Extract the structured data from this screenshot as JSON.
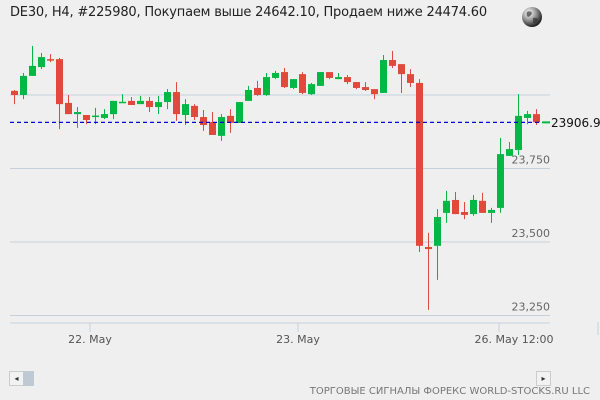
{
  "header": {
    "title": "DE30, H4, #225980, Покупаем выше 24642.10, Продаем ниже 24474.60",
    "globe_icon": "globe-icon"
  },
  "footer": {
    "text": "ТОРГОВЫЕ СИГНАЛЫ ФОРЕКС WORLD-STOCKS.RU LLC"
  },
  "scrollbar": {
    "left_icon": "arrow-left-icon",
    "right_icon": "arrow-right-icon"
  },
  "colors": {
    "up": "#00b843",
    "down": "#e0493b",
    "current_line": "#0000dd",
    "grid": "#c3d0dd"
  },
  "chart_data": {
    "type": "candlestick",
    "symbol": "DE30",
    "timeframe": "H4",
    "current_price": "23906.9",
    "ylim": [
      23220,
      24260
    ],
    "y_ticks": [
      {
        "value": 23250,
        "label": "23,250"
      },
      {
        "value": 23500,
        "label": "23,500"
      },
      {
        "value": 23750,
        "label": "23,750"
      },
      {
        "value": 24000,
        "label": ""
      }
    ],
    "x_labels": [
      "22. May",
      "23. May",
      "26. May 12:00"
    ],
    "grid": true,
    "candles": [
      [
        24014,
        24017,
        23969,
        24000
      ],
      [
        24000,
        24075,
        23986,
        24065
      ],
      [
        24065,
        24167,
        24065,
        24099
      ],
      [
        24095,
        24143,
        24088,
        24129
      ],
      [
        24122,
        24139,
        24112,
        24119
      ],
      [
        24122,
        24126,
        23884,
        23969
      ],
      [
        23973,
        24000,
        23935,
        23935
      ],
      [
        23935,
        23959,
        23888,
        23942
      ],
      [
        23932,
        23932,
        23901,
        23915
      ],
      [
        23929,
        23956,
        23901,
        23930
      ],
      [
        23922,
        23952,
        23918,
        23935
      ],
      [
        23935,
        23980,
        23918,
        23980
      ],
      [
        23975,
        24003,
        23973,
        23977
      ],
      [
        23980,
        23993,
        23966,
        23966
      ],
      [
        23969,
        23997,
        23969,
        23980
      ],
      [
        23980,
        23993,
        23942,
        23959
      ],
      [
        23959,
        23997,
        23935,
        23976
      ],
      [
        23976,
        24020,
        23952,
        24010
      ],
      [
        24010,
        24044,
        23912,
        23935
      ],
      [
        23932,
        23986,
        23898,
        23969
      ],
      [
        23963,
        23969,
        23915,
        23925
      ],
      [
        23925,
        23949,
        23878,
        23898
      ],
      [
        23908,
        23942,
        23864,
        23864
      ],
      [
        23861,
        23935,
        23844,
        23925
      ],
      [
        23929,
        23952,
        23871,
        23905
      ],
      [
        23905,
        23976,
        23905,
        23976
      ],
      [
        23980,
        24031,
        23980,
        24017
      ],
      [
        24024,
        24048,
        23997,
        24000
      ],
      [
        24000,
        24075,
        23997,
        24061
      ],
      [
        24058,
        24082,
        24054,
        24075
      ],
      [
        24078,
        24092,
        24024,
        24027
      ],
      [
        24024,
        24054,
        24020,
        24054
      ],
      [
        24071,
        24078,
        24003,
        24007
      ],
      [
        24003,
        24041,
        24000,
        24037
      ],
      [
        24031,
        24078,
        24031,
        24078
      ],
      [
        24078,
        24078,
        24054,
        24058
      ],
      [
        24054,
        24075,
        24054,
        24061
      ],
      [
        24061,
        24068,
        24037,
        24044
      ],
      [
        24044,
        24044,
        24020,
        24024
      ],
      [
        24027,
        24044,
        24014,
        24017
      ],
      [
        24020,
        24020,
        23986,
        24003
      ],
      [
        24007,
        24136,
        24007,
        24119
      ],
      [
        24119,
        24150,
        24092,
        24099
      ],
      [
        24105,
        24105,
        24007,
        24071
      ],
      [
        24071,
        24088,
        24027,
        24041
      ],
      [
        24041,
        24054,
        23466,
        23487
      ],
      [
        23483,
        23531,
        23269,
        23476
      ],
      [
        23487,
        23612,
        23371,
        23585
      ],
      [
        23599,
        23674,
        23565,
        23640
      ],
      [
        23643,
        23670,
        23595,
        23595
      ],
      [
        23602,
        23636,
        23578,
        23592
      ],
      [
        23595,
        23660,
        23589,
        23643
      ],
      [
        23640,
        23667,
        23599,
        23599
      ],
      [
        23599,
        23616,
        23565,
        23609
      ],
      [
        23616,
        23854,
        23599,
        23799
      ],
      [
        23793,
        23840,
        23793,
        23816
      ],
      [
        23813,
        24003,
        23796,
        23929
      ],
      [
        23922,
        23946,
        23901,
        23935
      ],
      [
        23935,
        23952,
        23898,
        23907
      ]
    ],
    "candle_format": [
      "open",
      "high",
      "low",
      "close"
    ]
  }
}
